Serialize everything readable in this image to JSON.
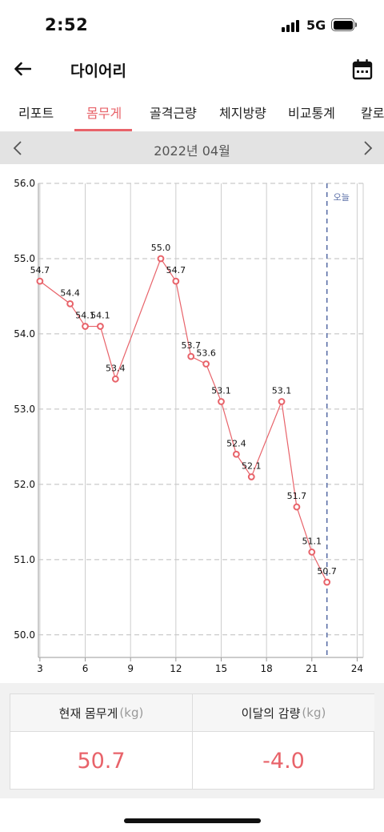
{
  "status_bar": {
    "time": "2:52",
    "network": "5G"
  },
  "app_bar": {
    "title": "다이어리",
    "back_icon": "arrow-left-icon",
    "calendar_icon": "calendar-icon"
  },
  "tabs": [
    {
      "label": "리포트",
      "active": false
    },
    {
      "label": "몸무게",
      "active": true
    },
    {
      "label": "골격근량",
      "active": false
    },
    {
      "label": "체지방량",
      "active": false
    },
    {
      "label": "비교통계",
      "active": false
    },
    {
      "label": "칼로",
      "active": false
    }
  ],
  "month_nav": {
    "label": "2022년 04월"
  },
  "colors": {
    "accent": "#e8636a",
    "today_line": "#5b6fa8",
    "grid": "#bdbdbd"
  },
  "chart_data": {
    "type": "line",
    "title": "",
    "xlabel": "",
    "ylabel": "",
    "xlim": [
      2.9,
      24.4
    ],
    "ylim": [
      49.7,
      56.0
    ],
    "x_ticks": [
      "3",
      "6",
      "9",
      "12",
      "15",
      "18",
      "21",
      "24"
    ],
    "y_ticks": [
      "50.0",
      "51.0",
      "52.0",
      "53.0",
      "54.0",
      "55.0",
      "56.0"
    ],
    "today_x": 22,
    "today_label": "오늘",
    "points": [
      {
        "x": 3,
        "y": 54.7,
        "label": "54.7"
      },
      {
        "x": 5,
        "y": 54.4,
        "label": "54.4"
      },
      {
        "x": 6,
        "y": 54.1,
        "label": "54.1"
      },
      {
        "x": 7,
        "y": 54.1,
        "label": "54.1"
      },
      {
        "x": 8,
        "y": 53.4,
        "label": "53.4"
      },
      {
        "x": 11,
        "y": 55.0,
        "label": "55.0"
      },
      {
        "x": 12,
        "y": 54.7,
        "label": "54.7"
      },
      {
        "x": 13,
        "y": 53.7,
        "label": "53.7"
      },
      {
        "x": 14,
        "y": 53.6,
        "label": "53.6"
      },
      {
        "x": 15,
        "y": 53.1,
        "label": "53.1"
      },
      {
        "x": 16,
        "y": 52.4,
        "label": "52.4"
      },
      {
        "x": 17,
        "y": 52.1,
        "label": "52.1"
      },
      {
        "x": 19,
        "y": 53.1,
        "label": "53.1"
      },
      {
        "x": 20,
        "y": 51.7,
        "label": "51.7"
      },
      {
        "x": 21,
        "y": 51.1,
        "label": "51.1"
      },
      {
        "x": 22,
        "y": 50.7,
        "label": "50.7"
      }
    ]
  },
  "summary": {
    "current_label": "현재 몸무게",
    "current_unit": "(kg)",
    "current_value": "50.7",
    "change_label": "이달의 감량",
    "change_unit": "(kg)",
    "change_value": "-4.0"
  }
}
